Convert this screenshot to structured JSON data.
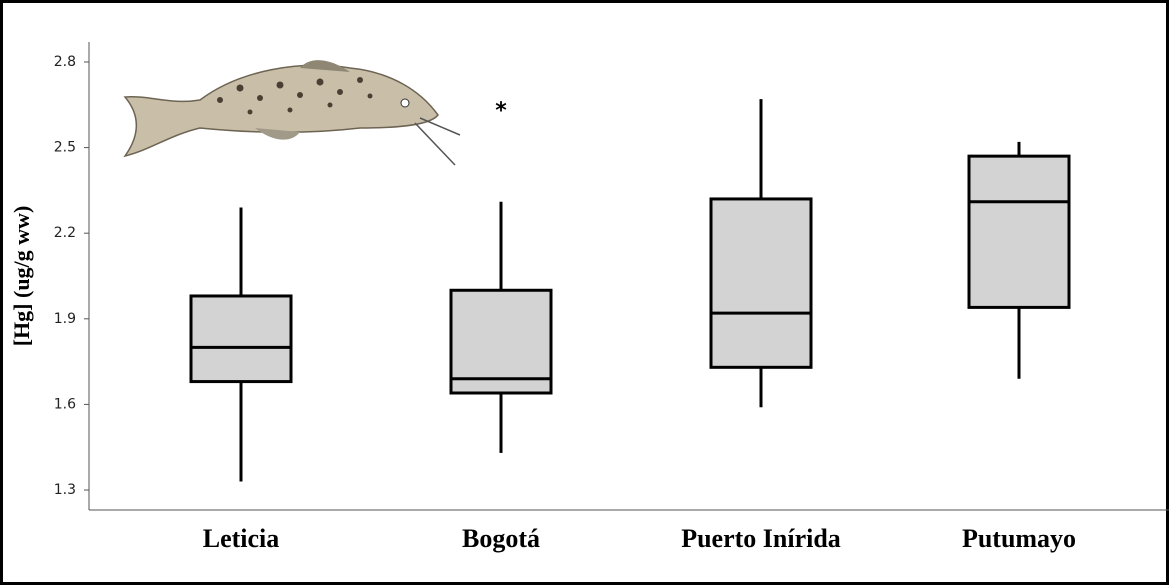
{
  "chart_data": {
    "type": "box",
    "y_label": "[Hg] (ug/g ww)",
    "categories": [
      "Leticia",
      "Bogotá",
      "Puerto Inírida",
      "Putumayo"
    ],
    "whisker_low": [
      1.33,
      1.43,
      1.59,
      1.69
    ],
    "q1": [
      1.68,
      1.64,
      1.73,
      1.94
    ],
    "median": [
      1.8,
      1.69,
      1.92,
      2.31
    ],
    "q3": [
      1.98,
      2.0,
      2.32,
      2.47
    ],
    "whisker_high": [
      2.29,
      2.31,
      2.67,
      2.52
    ],
    "outliers": [
      [],
      [
        2.64
      ],
      [],
      []
    ],
    "outlier_symbol": "*",
    "color": "#d3d3d3",
    "ylim": [
      1.23,
      2.87
    ],
    "yticks": [
      1.3,
      1.6,
      1.9,
      2.2,
      2.5,
      2.8
    ]
  }
}
